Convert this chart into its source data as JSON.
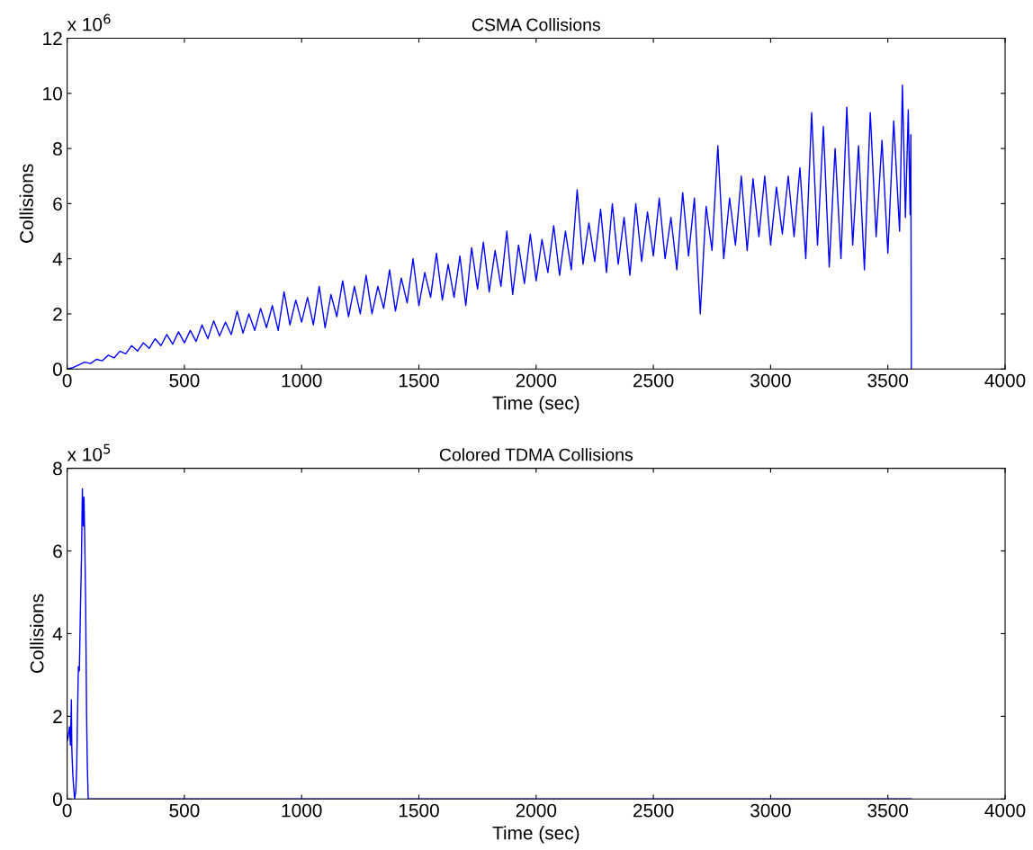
{
  "chart_data": [
    {
      "type": "line",
      "title": "CSMA Collisions",
      "xlabel": "Time (sec)",
      "ylabel": "Collisions",
      "annotations": [
        "x 10$^{6}$"
      ],
      "xlim": [
        0,
        4000
      ],
      "xticks": [
        0,
        500,
        1000,
        1500,
        2000,
        2500,
        3000,
        3500,
        4000
      ],
      "ylim": [
        0,
        12
      ],
      "yticks": [
        0,
        2,
        4,
        6,
        8,
        10,
        12
      ],
      "grid": false,
      "legend": false,
      "series": [
        {
          "color": "#0000ff",
          "x": [
            0,
            25,
            50,
            75,
            100,
            125,
            150,
            175,
            200,
            225,
            250,
            275,
            300,
            325,
            350,
            375,
            400,
            425,
            450,
            475,
            500,
            525,
            550,
            575,
            600,
            625,
            650,
            675,
            700,
            725,
            750,
            775,
            800,
            825,
            850,
            875,
            900,
            925,
            950,
            975,
            1000,
            1025,
            1050,
            1075,
            1100,
            1125,
            1150,
            1175,
            1200,
            1225,
            1250,
            1275,
            1300,
            1325,
            1350,
            1375,
            1400,
            1425,
            1450,
            1475,
            1500,
            1525,
            1550,
            1575,
            1600,
            1625,
            1650,
            1675,
            1700,
            1725,
            1750,
            1775,
            1800,
            1825,
            1850,
            1875,
            1900,
            1925,
            1950,
            1975,
            2000,
            2025,
            2050,
            2075,
            2100,
            2125,
            2150,
            2175,
            2200,
            2225,
            2250,
            2275,
            2300,
            2325,
            2350,
            2375,
            2400,
            2425,
            2450,
            2475,
            2500,
            2525,
            2550,
            2575,
            2600,
            2625,
            2650,
            2675,
            2700,
            2725,
            2750,
            2775,
            2800,
            2825,
            2850,
            2875,
            2900,
            2925,
            2950,
            2975,
            3000,
            3025,
            3050,
            3075,
            3100,
            3125,
            3150,
            3175,
            3200,
            3225,
            3250,
            3275,
            3300,
            3325,
            3350,
            3375,
            3400,
            3425,
            3450,
            3475,
            3500,
            3525,
            3550,
            3562,
            3575,
            3587,
            3595,
            3598,
            3600
          ],
          "values": [
            0,
            0.05,
            0.15,
            0.25,
            0.2,
            0.35,
            0.3,
            0.5,
            0.4,
            0.65,
            0.55,
            0.85,
            0.65,
            0.95,
            0.75,
            1.1,
            0.85,
            1.25,
            0.9,
            1.35,
            0.95,
            1.4,
            1.0,
            1.6,
            1.1,
            1.75,
            1.2,
            1.7,
            1.25,
            2.1,
            1.3,
            2.0,
            1.4,
            2.2,
            1.5,
            2.3,
            1.4,
            2.8,
            1.6,
            2.5,
            1.7,
            2.6,
            1.6,
            3.0,
            1.5,
            2.7,
            1.9,
            3.2,
            1.9,
            3.0,
            2.0,
            3.4,
            2.0,
            3.0,
            2.2,
            3.6,
            2.1,
            3.3,
            2.4,
            4.0,
            2.3,
            3.5,
            2.6,
            4.2,
            2.5,
            3.8,
            2.6,
            4.1,
            2.3,
            4.4,
            2.9,
            4.6,
            2.8,
            4.3,
            3.0,
            5.0,
            2.7,
            4.5,
            3.1,
            4.9,
            3.2,
            4.7,
            3.5,
            5.2,
            3.4,
            5.0,
            3.6,
            6.5,
            3.8,
            5.3,
            3.9,
            5.8,
            3.5,
            6.0,
            3.8,
            5.5,
            3.4,
            6.0,
            3.9,
            5.7,
            4.1,
            6.2,
            4.0,
            5.5,
            3.6,
            6.4,
            4.1,
            6.2,
            2.0,
            5.9,
            4.3,
            8.1,
            4.0,
            6.2,
            4.5,
            7.0,
            4.3,
            6.9,
            4.8,
            7.0,
            4.5,
            6.6,
            4.9,
            7.0,
            4.8,
            7.3,
            4.0,
            9.3,
            4.5,
            8.8,
            3.7,
            8.0,
            4.0,
            9.5,
            4.5,
            8.1,
            3.6,
            9.3,
            4.8,
            8.3,
            4.2,
            9.0,
            5.0,
            10.3,
            5.5,
            9.4,
            5.6,
            8.5,
            0
          ]
        }
      ]
    },
    {
      "type": "line",
      "title": "Colored TDMA Collisions",
      "xlabel": "Time (sec)",
      "ylabel": "Collisions",
      "annotations": [
        "x 10$^{5}$"
      ],
      "xlim": [
        0,
        4000
      ],
      "xticks": [
        0,
        500,
        1000,
        1500,
        2000,
        2500,
        3000,
        3500,
        4000
      ],
      "ylim": [
        0,
        8
      ],
      "yticks": [
        0,
        2,
        4,
        6,
        8
      ],
      "grid": false,
      "legend": false,
      "series": [
        {
          "color": "#0000ff",
          "x": [
            0,
            4,
            10,
            14,
            18,
            20,
            24,
            29,
            32,
            37,
            41,
            44,
            48,
            52,
            57,
            61,
            65,
            69,
            72,
            75,
            79,
            83,
            86,
            90,
            3600
          ],
          "values": [
            1.4,
            1.5,
            1.75,
            1.3,
            2.4,
            1.2,
            0.6,
            0.2,
            0.0,
            0.2,
            0.8,
            2.0,
            3.2,
            3.1,
            4.7,
            5.8,
            7.5,
            6.6,
            7.3,
            6.3,
            4.7,
            2.0,
            0.8,
            0.0,
            0.0
          ]
        }
      ]
    }
  ]
}
